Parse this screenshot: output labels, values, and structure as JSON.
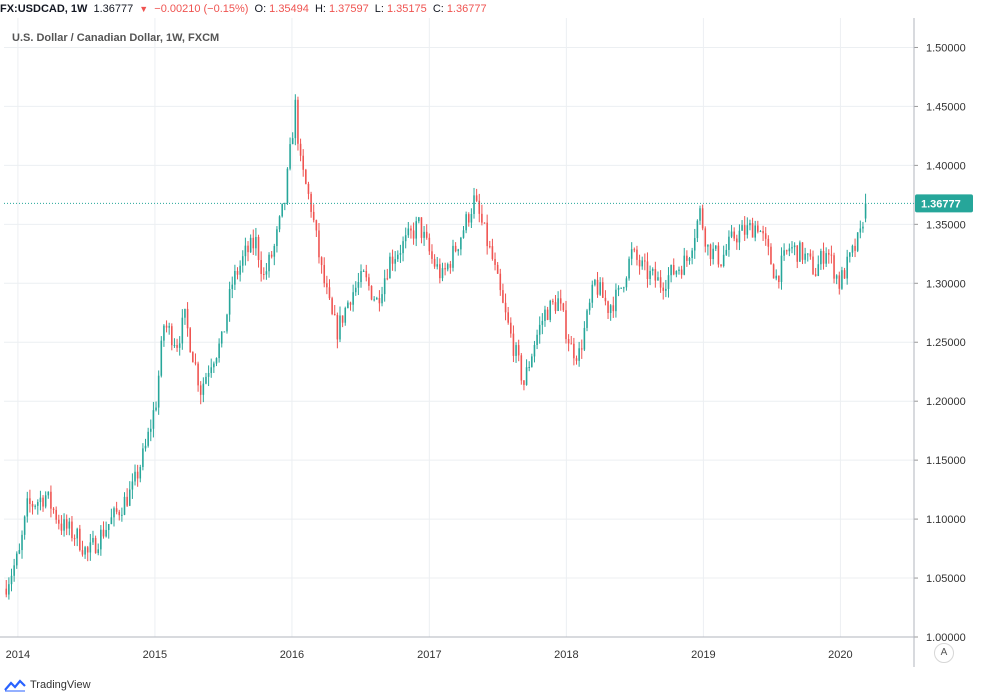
{
  "header": {
    "symbol": "FX:USDCAD, 1W",
    "last": "1.36777",
    "change": "−0.00210 (−0.15%)",
    "open_label": "O:",
    "open": "1.35494",
    "high_label": "H:",
    "high": "1.37597",
    "low_label": "L:",
    "low": "1.35175",
    "close_label": "C:",
    "close": "1.36777"
  },
  "title": "U.S. Dollar / Canadian Dollar, 1W, FXCM",
  "footer": {
    "brand": "TradingView"
  },
  "auto_scale_label": "A",
  "colors": {
    "up": "#26a69a",
    "down": "#ef5350",
    "grid": "#eceff2",
    "price_line": "#26a69a",
    "price_label_bg": "#26a69a"
  },
  "chart_data": {
    "type": "candlestick",
    "title": "U.S. Dollar / Canadian Dollar, 1W, FXCM",
    "x_axis": {
      "type": "time",
      "labels": [
        "2014",
        "2015",
        "2016",
        "2017",
        "2018",
        "2019",
        "2020"
      ],
      "range": [
        "2013-11-25",
        "2020-07-15"
      ]
    },
    "y_axis": {
      "side": "right",
      "labels": [
        "1.50000",
        "1.45000",
        "1.40000",
        "1.35000",
        "1.30000",
        "1.25000",
        "1.20000",
        "1.15000",
        "1.10000",
        "1.05000",
        "1.00000"
      ],
      "ylim": [
        1.0,
        1.525
      ]
    },
    "current_price": 1.36777,
    "current_price_label": "1.36777",
    "grid": true,
    "series_anchors": [
      {
        "date": "2013-12-01",
        "close": 1.045
      },
      {
        "date": "2014-01-05",
        "close": 1.07
      },
      {
        "date": "2014-01-26",
        "close": 1.11
      },
      {
        "date": "2014-03-16",
        "close": 1.12
      },
      {
        "date": "2014-04-27",
        "close": 1.095
      },
      {
        "date": "2014-06-08",
        "close": 1.085
      },
      {
        "date": "2014-07-06",
        "close": 1.07
      },
      {
        "date": "2014-08-17",
        "close": 1.09
      },
      {
        "date": "2014-09-21",
        "close": 1.105
      },
      {
        "date": "2014-11-02",
        "close": 1.125
      },
      {
        "date": "2014-12-07",
        "close": 1.16
      },
      {
        "date": "2015-01-04",
        "close": 1.2
      },
      {
        "date": "2015-01-25",
        "close": 1.265
      },
      {
        "date": "2015-03-01",
        "close": 1.25
      },
      {
        "date": "2015-03-22",
        "close": 1.27
      },
      {
        "date": "2015-05-03",
        "close": 1.21
      },
      {
        "date": "2015-05-31",
        "close": 1.235
      },
      {
        "date": "2015-06-28",
        "close": 1.25
      },
      {
        "date": "2015-07-26",
        "close": 1.3
      },
      {
        "date": "2015-08-30",
        "close": 1.325
      },
      {
        "date": "2015-09-27",
        "close": 1.335
      },
      {
        "date": "2015-10-18",
        "close": 1.305
      },
      {
        "date": "2015-11-15",
        "close": 1.33
      },
      {
        "date": "2015-12-13",
        "close": 1.37
      },
      {
        "date": "2016-01-10",
        "close": 1.45
      },
      {
        "date": "2016-01-24",
        "close": 1.4
      },
      {
        "date": "2016-02-21",
        "close": 1.365
      },
      {
        "date": "2016-03-20",
        "close": 1.31
      },
      {
        "date": "2016-04-17",
        "close": 1.27
      },
      {
        "date": "2016-05-01",
        "close": 1.26
      },
      {
        "date": "2016-06-05",
        "close": 1.29
      },
      {
        "date": "2016-07-10",
        "close": 1.305
      },
      {
        "date": "2016-08-14",
        "close": 1.285
      },
      {
        "date": "2016-09-18",
        "close": 1.32
      },
      {
        "date": "2016-10-30",
        "close": 1.335
      },
      {
        "date": "2016-12-04",
        "close": 1.35
      },
      {
        "date": "2017-01-08",
        "close": 1.32
      },
      {
        "date": "2017-02-05",
        "close": 1.305
      },
      {
        "date": "2017-03-19",
        "close": 1.335
      },
      {
        "date": "2017-04-30",
        "close": 1.37
      },
      {
        "date": "2017-05-21",
        "close": 1.35
      },
      {
        "date": "2017-06-18",
        "close": 1.32
      },
      {
        "date": "2017-07-16",
        "close": 1.28
      },
      {
        "date": "2017-08-06",
        "close": 1.255
      },
      {
        "date": "2017-09-10",
        "close": 1.215
      },
      {
        "date": "2017-10-08",
        "close": 1.25
      },
      {
        "date": "2017-11-05",
        "close": 1.275
      },
      {
        "date": "2017-12-10",
        "close": 1.285
      },
      {
        "date": "2018-01-14",
        "close": 1.245
      },
      {
        "date": "2018-02-04",
        "close": 1.24
      },
      {
        "date": "2018-03-18",
        "close": 1.3
      },
      {
        "date": "2018-04-22",
        "close": 1.28
      },
      {
        "date": "2018-05-20",
        "close": 1.29
      },
      {
        "date": "2018-06-24",
        "close": 1.325
      },
      {
        "date": "2018-07-29",
        "close": 1.31
      },
      {
        "date": "2018-09-09",
        "close": 1.3
      },
      {
        "date": "2018-10-14",
        "close": 1.31
      },
      {
        "date": "2018-11-18",
        "close": 1.32
      },
      {
        "date": "2018-12-23",
        "close": 1.36
      },
      {
        "date": "2019-01-13",
        "close": 1.33
      },
      {
        "date": "2019-02-17",
        "close": 1.32
      },
      {
        "date": "2019-03-24",
        "close": 1.34
      },
      {
        "date": "2019-04-28",
        "close": 1.345
      },
      {
        "date": "2019-05-26",
        "close": 1.35
      },
      {
        "date": "2019-06-23",
        "close": 1.325
      },
      {
        "date": "2019-07-14",
        "close": 1.305
      },
      {
        "date": "2019-08-18",
        "close": 1.33
      },
      {
        "date": "2019-09-22",
        "close": 1.325
      },
      {
        "date": "2019-10-27",
        "close": 1.31
      },
      {
        "date": "2019-11-24",
        "close": 1.33
      },
      {
        "date": "2019-12-29",
        "close": 1.3
      },
      {
        "date": "2020-01-26",
        "close": 1.32
      },
      {
        "date": "2020-02-23",
        "close": 1.34
      },
      {
        "date": "2020-03-01",
        "close": 1.355
      },
      {
        "date": "2020-03-08",
        "close": 1.36777
      }
    ]
  }
}
